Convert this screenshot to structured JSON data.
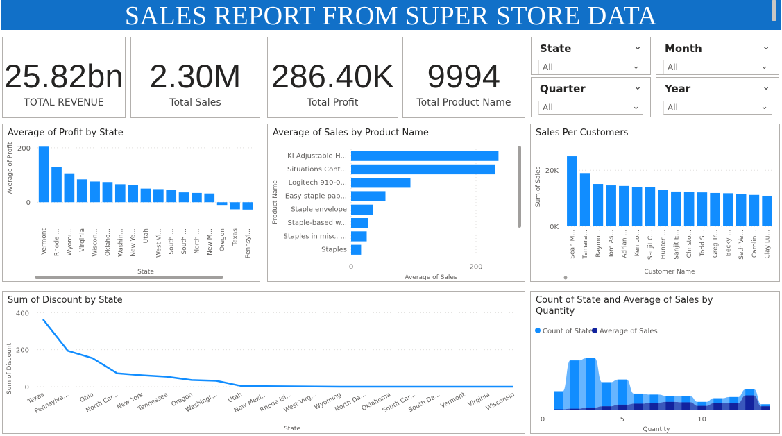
{
  "header": {
    "title": "SALES REPORT FROM SUPER STORE DATA"
  },
  "kpis": [
    {
      "value": "25.82bn",
      "label": "TOTAL REVENUE"
    },
    {
      "value": "2.30M",
      "label": "Total Sales"
    },
    {
      "value": "286.40K",
      "label": "Total Profit"
    },
    {
      "value": "9994",
      "label": "Total Product Name"
    }
  ],
  "slicers": [
    {
      "title": "State",
      "value": "All"
    },
    {
      "title": "Month",
      "value": "All"
    },
    {
      "title": "Quarter",
      "value": "All"
    },
    {
      "title": "Year",
      "value": "All"
    }
  ],
  "colors": {
    "accent": "#118dff",
    "dark": "#12239e",
    "light": "#5fb1ff",
    "banner": "#1170c8"
  },
  "chart_data": [
    {
      "id": "profit_by_state",
      "type": "bar",
      "title": "Average of Profit by State",
      "xlabel": "State",
      "ylabel": "Average of Profit",
      "ylim": [
        -30,
        220
      ],
      "yticks": [
        0,
        200
      ],
      "categories": [
        "Vermont",
        "Rhode ...",
        "Wyomi...",
        "Virginia",
        "Wiscon...",
        "Oklaho...",
        "Washin...",
        "New Yo...",
        "Utah",
        "West Vi...",
        "South ...",
        "South ...",
        "North ...",
        "New M...",
        "Oregon",
        "Texas",
        "Pennsyl..."
      ],
      "values": [
        204,
        130,
        106,
        84,
        76,
        74,
        66,
        64,
        50,
        48,
        44,
        36,
        34,
        32,
        -10,
        -26,
        -27
      ]
    },
    {
      "id": "sales_by_product",
      "type": "bar",
      "orientation": "horizontal",
      "title": "Average of Sales by Product Name",
      "xlabel": "Average of Sales",
      "ylabel": "Product Name",
      "xlim": [
        0,
        250
      ],
      "xticks": [
        0,
        200
      ],
      "categories": [
        "KI Adjustable-H...",
        "Situations Cont...",
        "Logitech 910-0...",
        "Easy-staple pap...",
        "Staple envelope",
        "Staple-based w...",
        "Staples in misc. ...",
        "Staples"
      ],
      "values": [
        236,
        230,
        95,
        55,
        35,
        27,
        25,
        16
      ]
    },
    {
      "id": "sales_per_customer",
      "type": "bar",
      "title": "Sales Per Customers",
      "xlabel": "Customer Name",
      "ylabel": "Sum of Sales",
      "ylim": [
        0,
        26500
      ],
      "yticks": [
        0,
        20000
      ],
      "ytick_labels": [
        "0K",
        "20K"
      ],
      "categories": [
        "Sean M...",
        "Tamara...",
        "Raymo...",
        "Tom As...",
        "Adrian ...",
        "Ken Lo...",
        "Sanjit C...",
        "Hunter ...",
        "Sanjit E...",
        "Christo...",
        "Todd S...",
        "Greg Tr...",
        "Becky ...",
        "Seth Ve...",
        "Carolin...",
        "Clay Lu..."
      ],
      "values": [
        25000,
        19000,
        15100,
        14600,
        14400,
        14100,
        14000,
        12900,
        12400,
        12200,
        12100,
        11900,
        11800,
        11500,
        11200,
        10900
      ]
    },
    {
      "id": "discount_by_state",
      "type": "line",
      "title": "Sum of Discount by State",
      "xlabel": "State",
      "ylabel": "Sum of Discount",
      "ylim": [
        0,
        420
      ],
      "yticks": [
        0,
        200,
        400
      ],
      "categories": [
        "Texas",
        "Pennsylva...",
        "Ohio",
        "North Car...",
        "New York",
        "Tennessee",
        "Oregon",
        "Washingt...",
        "Utah",
        "New Mexi...",
        "Rhode Isl...",
        "West Virg...",
        "Wyoming",
        "North Da...",
        "Oklahoma",
        "South Car...",
        "South Da...",
        "Vermont",
        "Virginia",
        "Wisconsin"
      ],
      "values": [
        364,
        194,
        154,
        72,
        62,
        54,
        36,
        32,
        4,
        3,
        2,
        1,
        0,
        0,
        0,
        0,
        0,
        0,
        0,
        0
      ]
    },
    {
      "id": "state_sales_by_quantity",
      "type": "area",
      "title": "Count of State and Average of Sales by Quantity",
      "xlabel": "Quantity",
      "xlim": [
        0,
        14.5
      ],
      "xticks": [
        0,
        5,
        10
      ],
      "legend": "top-left",
      "series": [
        {
          "name": "Count of State",
          "x": [
            1,
            2,
            3,
            4,
            5,
            6,
            7,
            8,
            9,
            10,
            11,
            12,
            13,
            14
          ],
          "values": [
            900,
            2400,
            2450,
            1200,
            1250,
            500,
            400,
            300,
            300,
            200,
            250,
            300,
            300,
            100
          ]
        },
        {
          "name": "Average of Sales",
          "x": [
            1,
            2,
            3,
            4,
            5,
            6,
            7,
            8,
            9,
            10,
            11,
            12,
            13,
            14
          ],
          "values": [
            50,
            80,
            140,
            200,
            280,
            330,
            380,
            420,
            400,
            220,
            350,
            360,
            740,
            200
          ]
        }
      ]
    }
  ]
}
